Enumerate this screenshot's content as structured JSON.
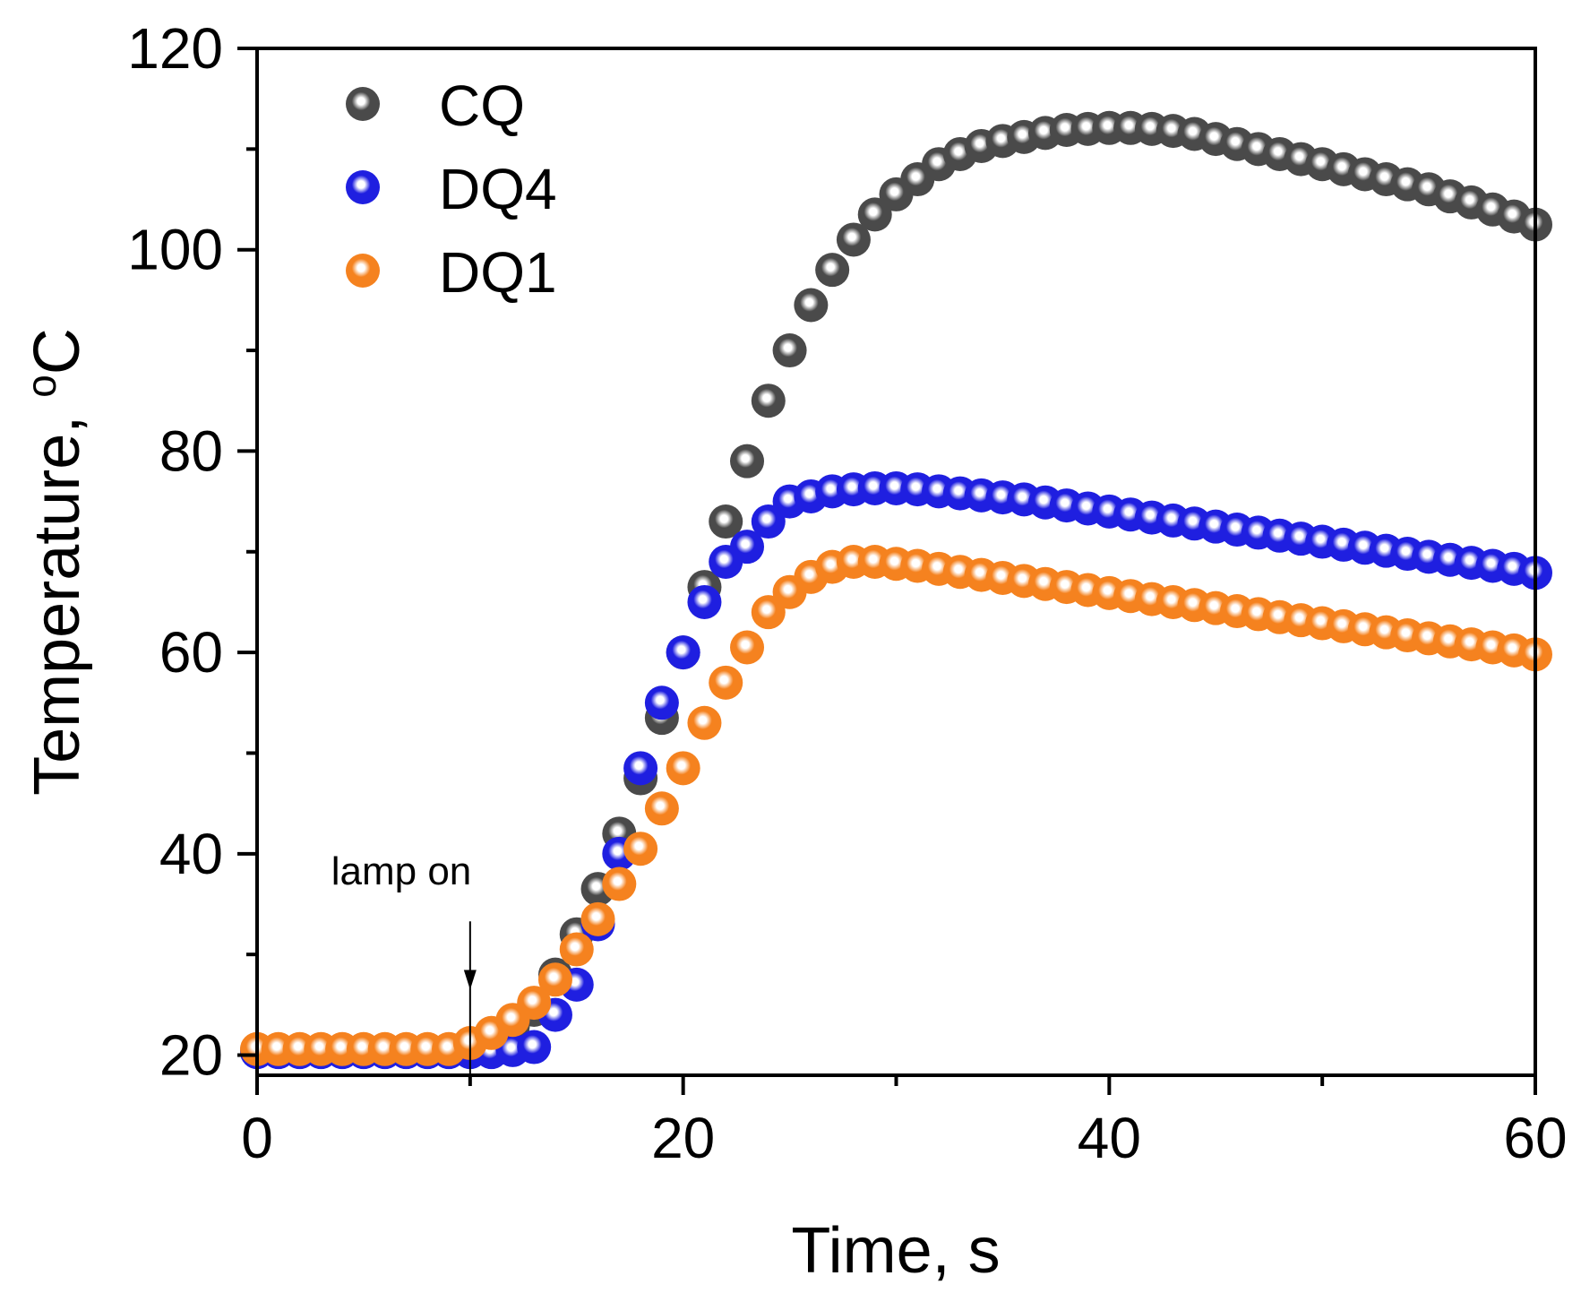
{
  "chart_data": {
    "type": "scatter",
    "title": "",
    "xlabel": "Time, s",
    "ylabel": "Temperature, ",
    "ylabel_unit_sup": "o",
    "ylabel_unit": "C",
    "xlim": [
      0,
      60
    ],
    "ylim": [
      18,
      120
    ],
    "x_ticks": [
      0,
      20,
      40,
      60
    ],
    "x_minor_ticks": [
      10,
      30,
      50
    ],
    "y_ticks": [
      20,
      40,
      60,
      80,
      100,
      120
    ],
    "y_minor_ticks": [
      30,
      50,
      70,
      90,
      110
    ],
    "x_tick_labels": [
      "0",
      "20",
      "40",
      "60"
    ],
    "y_tick_labels": [
      "20",
      "40",
      "60",
      "80",
      "100",
      "120"
    ],
    "legend_position": "top-left",
    "annotation": {
      "text": "lamp on",
      "x": 10,
      "y_from": 34,
      "y_to": 18
    },
    "series": [
      {
        "name": "CQ",
        "color": "#4a4a4a",
        "x": [
          0,
          1,
          2,
          3,
          4,
          5,
          6,
          7,
          8,
          9,
          10,
          11,
          12,
          13,
          14,
          15,
          16,
          17,
          18,
          19,
          20,
          21,
          22,
          23,
          24,
          25,
          26,
          27,
          28,
          29,
          30,
          31,
          32,
          33,
          34,
          35,
          36,
          37,
          38,
          39,
          40,
          41,
          42,
          43,
          44,
          45,
          46,
          47,
          48,
          49,
          50,
          51,
          52,
          53,
          54,
          55,
          56,
          57,
          58,
          59,
          60
        ],
        "values": [
          20.5,
          20.5,
          20.5,
          20.5,
          20.5,
          20.5,
          20.5,
          20.5,
          20.5,
          20.5,
          20.5,
          21.5,
          22.8,
          24.5,
          28,
          32,
          36.5,
          42,
          47.5,
          53.5,
          60,
          66.5,
          73,
          79,
          85,
          90,
          94.5,
          98,
          101,
          103.5,
          105.5,
          107,
          108.5,
          109.5,
          110.3,
          110.8,
          111.2,
          111.6,
          111.9,
          112,
          112.1,
          112.1,
          112,
          111.8,
          111.5,
          111,
          110.5,
          110,
          109.5,
          109,
          108.5,
          108,
          107.5,
          107,
          106.5,
          106,
          105.3,
          104.7,
          104,
          103.3,
          102.5
        ]
      },
      {
        "name": "DQ4",
        "color": "#1f1fe0",
        "x": [
          0,
          1,
          2,
          3,
          4,
          5,
          6,
          7,
          8,
          9,
          10,
          11,
          12,
          13,
          14,
          15,
          16,
          17,
          18,
          19,
          20,
          21,
          22,
          23,
          24,
          25,
          26,
          27,
          28,
          29,
          30,
          31,
          32,
          33,
          34,
          35,
          36,
          37,
          38,
          39,
          40,
          41,
          42,
          43,
          44,
          45,
          46,
          47,
          48,
          49,
          50,
          51,
          52,
          53,
          54,
          55,
          56,
          57,
          58,
          59,
          60
        ],
        "values": [
          20.3,
          20.3,
          20.3,
          20.3,
          20.3,
          20.3,
          20.3,
          20.3,
          20.3,
          20.3,
          20.3,
          20.3,
          20.5,
          20.8,
          24,
          27,
          33,
          40,
          48.5,
          55,
          60,
          65,
          69,
          70.5,
          73,
          75,
          75.5,
          76,
          76.2,
          76.3,
          76.3,
          76.2,
          76,
          75.8,
          75.6,
          75.4,
          75.2,
          74.9,
          74.6,
          74.3,
          74,
          73.7,
          73.4,
          73.1,
          72.8,
          72.5,
          72.2,
          71.9,
          71.6,
          71.3,
          71,
          70.7,
          70.4,
          70.1,
          69.8,
          69.5,
          69.2,
          68.9,
          68.6,
          68.3,
          67.9
        ]
      },
      {
        "name": "DQ1",
        "color": "#f5821f",
        "x": [
          0,
          1,
          2,
          3,
          4,
          5,
          6,
          7,
          8,
          9,
          10,
          11,
          12,
          13,
          14,
          15,
          16,
          17,
          18,
          19,
          20,
          21,
          22,
          23,
          24,
          25,
          26,
          27,
          28,
          29,
          30,
          31,
          32,
          33,
          34,
          35,
          36,
          37,
          38,
          39,
          40,
          41,
          42,
          43,
          44,
          45,
          46,
          47,
          48,
          49,
          50,
          51,
          52,
          53,
          54,
          55,
          56,
          57,
          58,
          59,
          60
        ],
        "values": [
          20.6,
          20.6,
          20.6,
          20.6,
          20.6,
          20.6,
          20.6,
          20.6,
          20.6,
          20.6,
          21.2,
          22.2,
          23.5,
          25.2,
          27.5,
          30.5,
          33.5,
          37,
          40.5,
          44.5,
          48.5,
          53,
          57,
          60.5,
          64,
          66,
          67.5,
          68.5,
          69,
          69,
          68.8,
          68.6,
          68.3,
          68,
          67.7,
          67.4,
          67.1,
          66.8,
          66.5,
          66.2,
          65.9,
          65.6,
          65.3,
          65,
          64.7,
          64.4,
          64.1,
          63.8,
          63.5,
          63.2,
          62.9,
          62.6,
          62.3,
          62,
          61.7,
          61.4,
          61.1,
          60.8,
          60.5,
          60.2,
          59.8
        ]
      }
    ]
  }
}
